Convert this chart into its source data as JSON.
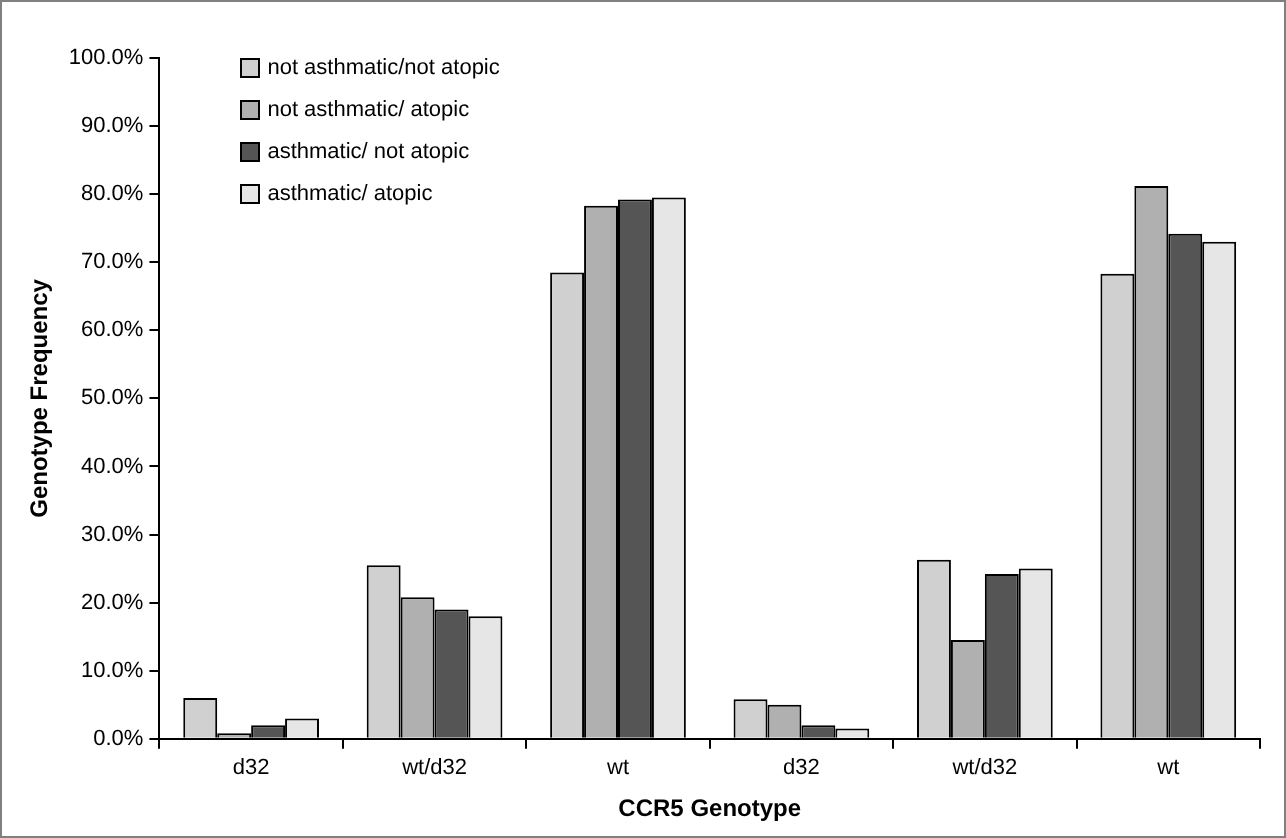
{
  "chart_data": {
    "type": "bar",
    "xlabel": "CCR5 Genotype",
    "ylabel": "Genotype Frequency",
    "categories": [
      "d32",
      "wt/d32",
      "wt",
      "d32",
      "wt/d32",
      "wt"
    ],
    "series": [
      {
        "name": "not asthmatic/not atopic",
        "color": "#d0d0d0",
        "values": [
          6.0,
          25.5,
          68.5,
          5.8,
          26.3,
          68.3
        ]
      },
      {
        "name": "not asthmatic/ atopic",
        "color": "#b0b0b0",
        "values": [
          0.8,
          20.8,
          78.3,
          5.0,
          14.5,
          81.2
        ]
      },
      {
        "name": "asthmatic/ not atopic",
        "color": "#555555",
        "values": [
          2.0,
          19.0,
          79.2,
          2.0,
          24.2,
          74.2
        ]
      },
      {
        "name": "asthmatic/ atopic",
        "color": "#e6e6e6",
        "values": [
          3.0,
          18.0,
          79.5,
          1.5,
          25.0,
          73.0
        ]
      }
    ],
    "ylim": [
      0,
      100
    ],
    "yticks": [
      {
        "value": 0,
        "label": "0.0%"
      },
      {
        "value": 10,
        "label": "10.0%"
      },
      {
        "value": 20,
        "label": "20.0%"
      },
      {
        "value": 30,
        "label": "30.0%"
      },
      {
        "value": 40,
        "label": "40.0%"
      },
      {
        "value": 50,
        "label": "50.0%"
      },
      {
        "value": 60,
        "label": "60.0%"
      },
      {
        "value": 70,
        "label": "70.0%"
      },
      {
        "value": 80,
        "label": "80.0%"
      },
      {
        "value": 90,
        "label": "90.0%"
      },
      {
        "value": 100,
        "label": "100.0%"
      }
    ],
    "grid": false,
    "legend": "top left"
  }
}
